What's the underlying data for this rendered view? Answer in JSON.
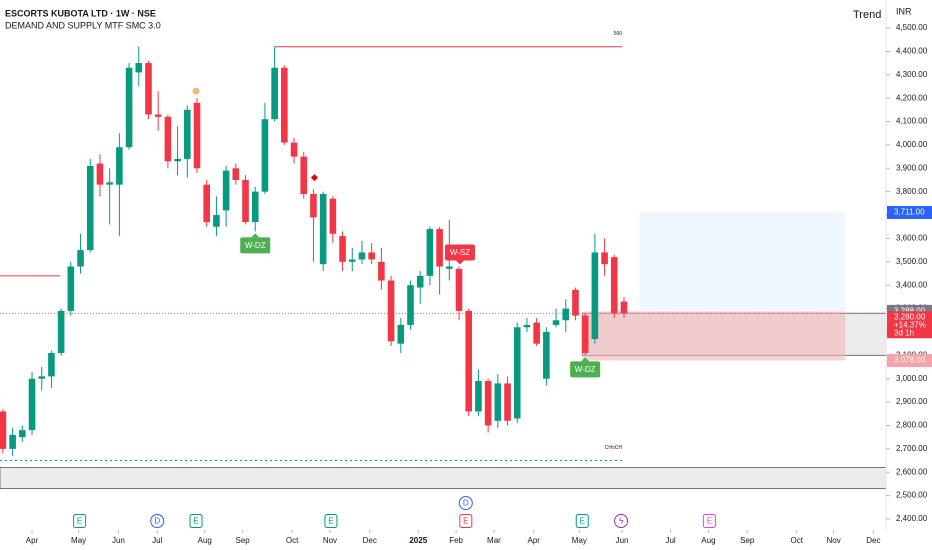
{
  "chart_data": {
    "type": "candlestick",
    "title": "ESCORTS KUBOTA LTD · 1W · NSE",
    "subtitle": "DEMAND AND SUPPLY MTF SMC 3.0",
    "trend_label": "Trend",
    "currency": "INR",
    "up_color": "#089981",
    "down_color": "#f23645",
    "open": [
      2860,
      2700,
      2750,
      2780,
      3000,
      3010,
      3110,
      3290,
      3480,
      3550,
      3920,
      3830,
      3830,
      3990,
      4310,
      4350,
      4130,
      4120,
      3930,
      3940,
      4180,
      3830,
      3650,
      3720,
      3900,
      3850,
      3670,
      3800,
      4110,
      4330,
      4010,
      3950,
      3790,
      3490,
      3770,
      3610,
      3500,
      3510,
      3540,
      3500,
      3420,
      3150,
      3230,
      3390,
      3440,
      3640,
      3470,
      3470,
      3290,
      2860,
      2990,
      2820,
      2980,
      2830,
      3220,
      3240,
      3000,
      3230,
      3250,
      3380,
      3270,
      3170,
      3540,
      3520,
      3330
    ],
    "high": [
      2870,
      2790,
      2800,
      3030,
      3050,
      3120,
      3300,
      3500,
      3620,
      3940,
      3960,
      3900,
      4050,
      4350,
      4420,
      4360,
      4230,
      4130,
      4080,
      4170,
      4200,
      3850,
      3780,
      3910,
      3920,
      3870,
      3820,
      4180,
      4420,
      4340,
      4030,
      3970,
      3810,
      3800,
      3780,
      3630,
      3560,
      3590,
      3580,
      3560,
      3440,
      3260,
      3420,
      3460,
      3650,
      3650,
      3680,
      3480,
      3300,
      3040,
      3000,
      3020,
      3010,
      3240,
      3260,
      3260,
      3220,
      3300,
      3340,
      3390,
      3280,
      3620,
      3600,
      3530,
      3350
    ],
    "low": [
      2680,
      2670,
      2730,
      2760,
      2950,
      2960,
      3100,
      3270,
      3450,
      3540,
      3780,
      3660,
      3610,
      3980,
      4250,
      4110,
      4060,
      3900,
      3870,
      3860,
      3880,
      3650,
      3610,
      3650,
      3830,
      3660,
      3630,
      3790,
      4100,
      4000,
      3920,
      3770,
      3500,
      3460,
      3580,
      3460,
      3460,
      3490,
      3490,
      3380,
      3140,
      3110,
      3210,
      3320,
      3400,
      3360,
      3420,
      3250,
      2840,
      2840,
      2770,
      2790,
      2800,
      2810,
      3200,
      3140,
      2970,
      3220,
      3200,
      3250,
      3100,
      3150,
      3440,
      3260,
      3260
    ],
    "close": [
      2700,
      2760,
      2780,
      3000,
      3010,
      3110,
      3290,
      3480,
      3550,
      3910,
      3830,
      3840,
      3990,
      4330,
      4350,
      4130,
      4120,
      3930,
      3940,
      4150,
      3900,
      3670,
      3700,
      3890,
      3850,
      3670,
      3800,
      4110,
      4330,
      4010,
      3950,
      3790,
      3690,
      3790,
      3620,
      3500,
      3510,
      3540,
      3510,
      3420,
      3160,
      3230,
      3400,
      3440,
      3640,
      3480,
      3480,
      3290,
      2860,
      2990,
      2800,
      2980,
      2820,
      3220,
      3230,
      3150,
      3200,
      3250,
      3300,
      3270,
      3110,
      3540,
      3490,
      3280,
      3280
    ],
    "xlim": [
      -0.3,
      91
    ],
    "xticks": [
      {
        "value": 3.0,
        "label": "Apr"
      },
      {
        "value": 7.8,
        "label": "May"
      },
      {
        "value": 11.9,
        "label": "Jun"
      },
      {
        "value": 15.9,
        "label": "Jul"
      },
      {
        "value": 20.8,
        "label": "Aug"
      },
      {
        "value": 24.7,
        "label": "Sep"
      },
      {
        "value": 29.8,
        "label": "Oct"
      },
      {
        "value": 33.7,
        "label": "Nov"
      },
      {
        "value": 37.8,
        "label": "Dec"
      },
      {
        "value": 42.8,
        "label": "2025"
      },
      {
        "value": 46.7,
        "label": "Feb"
      },
      {
        "value": 50.6,
        "label": "Mar"
      },
      {
        "value": 54.7,
        "label": "Apr"
      },
      {
        "value": 59.4,
        "label": "May"
      },
      {
        "value": 63.8,
        "label": "Jun"
      },
      {
        "value": 68.8,
        "label": "Jul"
      },
      {
        "value": 72.7,
        "label": "Aug"
      },
      {
        "value": 76.7,
        "label": "Sep"
      },
      {
        "value": 81.8,
        "label": "Oct"
      },
      {
        "value": 85.6,
        "label": "Nov"
      },
      {
        "value": 89.7,
        "label": "Dec"
      }
    ],
    "ylim": [
      2400,
      4500
    ],
    "yticks": [
      {
        "value": 4500,
        "label": "4,500.00"
      },
      {
        "value": 4400,
        "label": "4,400.00"
      },
      {
        "value": 4300,
        "label": "4,300.00"
      },
      {
        "value": 4200,
        "label": "4,200.00"
      },
      {
        "value": 4100,
        "label": "4,100.00"
      },
      {
        "value": 4000,
        "label": "4,000.00"
      },
      {
        "value": 3900,
        "label": "3,900.00"
      },
      {
        "value": 3800,
        "label": "3,800.00"
      },
      {
        "value": 3700,
        "label": "3,700.00"
      },
      {
        "value": 3600,
        "label": "3,600.00"
      },
      {
        "value": 3500,
        "label": "3,500.00"
      },
      {
        "value": 3400,
        "label": "3,400.00"
      },
      {
        "value": 3300,
        "label": "3,300.00"
      },
      {
        "value": 3200,
        "label": "3,200.00"
      },
      {
        "value": 3100,
        "label": "3,100.00"
      },
      {
        "value": 3000,
        "label": "3,000.00"
      },
      {
        "value": 2900,
        "label": "2,900.00"
      },
      {
        "value": 2800,
        "label": "2,800.00"
      },
      {
        "value": 2700,
        "label": "2,700.00"
      },
      {
        "value": 2600,
        "label": "2,600.00"
      },
      {
        "value": 2500,
        "label": "2,500.00"
      },
      {
        "value": 2400,
        "label": "2,400.00"
      }
    ],
    "price_labels": [
      {
        "value": 3711,
        "label": "3,711.00",
        "color": "#2962ff"
      },
      {
        "value": 3288,
        "label": "3,288.00",
        "color": "#787b86"
      },
      {
        "value": 3280,
        "label": "3,280.00",
        "color": "#f23645",
        "change": "+14.37%",
        "countdown": "3d 1h"
      },
      {
        "value": 3078,
        "label": "3,078.00",
        "color": "#f7a1a8"
      }
    ],
    "zones": [
      {
        "start": -0.3,
        "end": 91,
        "low": 2530,
        "high": 2620,
        "color": "#e0e0e0"
      },
      {
        "start": 59.7,
        "end": 91,
        "low": 3100,
        "high": 3280,
        "color": "#e0e0e0"
      },
      {
        "start": 59.7,
        "end": 86.8,
        "low": 3078,
        "high": 3288,
        "color": "#f4b6bb"
      },
      {
        "start": 65.6,
        "end": 86.8,
        "low": 3288,
        "high": 3711,
        "color": "#e3f0fd"
      }
    ],
    "levels": [
      {
        "start": 28,
        "end": 63.8,
        "value": 4420,
        "color": "#f23645",
        "label": "500"
      },
      {
        "start": -0.3,
        "end": 5.9,
        "value": 3440,
        "color": "#f23645"
      },
      {
        "start": -0.3,
        "end": 63.8,
        "value": 2650,
        "color": "#089981",
        "label": "CHoCH",
        "dash": true
      }
    ],
    "zone_labels": [
      {
        "label": "W-DZ",
        "at": 26,
        "value": 3630,
        "side": "below",
        "color": "#4caf50"
      },
      {
        "label": "W-SZ",
        "at": 47.1,
        "value": 3480,
        "side": "above",
        "color": "#f23645"
      },
      {
        "label": "W-DZ",
        "at": 60,
        "value": 3100,
        "side": "below",
        "color": "#4caf50"
      }
    ],
    "events": [
      {
        "label": "E",
        "at": 7.9,
        "color": "#089981",
        "row": 1
      },
      {
        "label": "D",
        "at": 15.9,
        "color": "#2962ff",
        "row": 1
      },
      {
        "label": "E",
        "at": 19.9,
        "color": "#089981",
        "row": 1
      },
      {
        "label": "E",
        "at": 33.8,
        "color": "#089981",
        "row": 1
      },
      {
        "label": "D",
        "at": 47.7,
        "color": "#2962ff",
        "row": 0
      },
      {
        "label": "E",
        "at": 47.7,
        "color": "#f23645",
        "row": 1
      },
      {
        "label": "E",
        "at": 59.7,
        "color": "#089981",
        "row": 1
      },
      {
        "label": "ϟ",
        "at": 63.7,
        "color": "#9c27b0",
        "row": 1
      },
      {
        "label": "E",
        "at": 72.8,
        "color": "#e040fb",
        "row": 1
      }
    ]
  }
}
